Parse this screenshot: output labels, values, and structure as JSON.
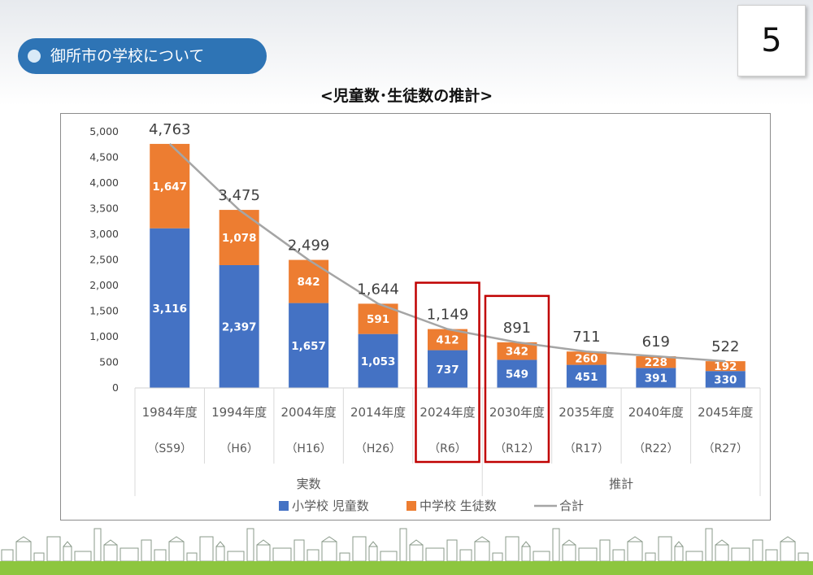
{
  "slide": {
    "section_title": "御所市の学校について",
    "page_number": "5"
  },
  "colors": {
    "elementary": "#4472c4",
    "junior_high": "#ed7d31",
    "total": "#a5a5a5",
    "highlight": "#c00000",
    "pill": "#2e74b5",
    "ground": "#8dc63f"
  },
  "chart_data": {
    "type": "bar",
    "stacked": true,
    "title": "<児童数･生徒数の推計>",
    "categories": [
      "1984年度",
      "1994年度",
      "2004年度",
      "2014年度",
      "2024年度",
      "2030年度",
      "2035年度",
      "2040年度",
      "2045年度"
    ],
    "sub_categories": [
      "（S59）",
      "（H6）",
      "（H16）",
      "（H26）",
      "（R6）",
      "（R12）",
      "（R17）",
      "（R22）",
      "（R27）"
    ],
    "groups": [
      {
        "label": "実数",
        "categories": [
          "1984年度",
          "1994年度",
          "2004年度",
          "2014年度",
          "2024年度"
        ]
      },
      {
        "label": "推計",
        "categories": [
          "2030年度",
          "2035年度",
          "2040年度",
          "2045年度"
        ]
      }
    ],
    "series": [
      {
        "name": "小学校 児童数",
        "values": [
          3116,
          2397,
          1657,
          1053,
          737,
          549,
          451,
          391,
          330
        ]
      },
      {
        "name": "中学校 生徒数",
        "values": [
          1647,
          1078,
          842,
          591,
          412,
          342,
          260,
          228,
          192
        ]
      }
    ],
    "line_series": {
      "name": "合計",
      "values": [
        4763,
        3475,
        2499,
        1644,
        1149,
        891,
        711,
        619,
        522
      ]
    },
    "y_ticks": [
      "5,000",
      "4,500",
      "4,000",
      "3,500",
      "3,000",
      "2,500",
      "2,000",
      "1,500",
      "1,000",
      "500",
      "0"
    ],
    "ylim": [
      0,
      5000
    ],
    "highlighted_categories": [
      "2024年度",
      "2030年度"
    ],
    "legend_position": "bottom",
    "grid": false
  }
}
